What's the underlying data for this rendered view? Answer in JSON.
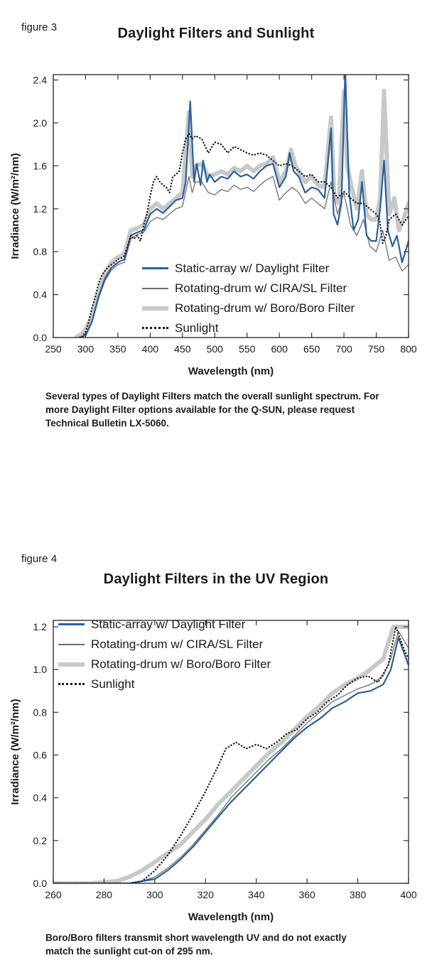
{
  "page": {
    "figure3_label": "figure 3",
    "figure4_label": "figure 4"
  },
  "chart_data": [
    {
      "id": "chart3",
      "type": "line",
      "title": "Daylight Filters and Sunlight",
      "xlabel": "Wavelength (nm)",
      "ylabel": "Irradiance (W/m²/nm)",
      "caption": "Several types of Daylight Filters match the overall sunlight spectrum. For more Daylight Filter options available for the Q-SUN, please request Technical Bulletin LX-5060.",
      "xlim": [
        250,
        800
      ],
      "ylim": [
        0,
        2.45
      ],
      "xticks": [
        250,
        300,
        350,
        400,
        450,
        500,
        550,
        600,
        650,
        700,
        750,
        800
      ],
      "xtick_labels": [
        "250",
        "300",
        "350",
        "400",
        "450",
        "500",
        "550",
        "600",
        "650",
        "700",
        "750",
        "800"
      ],
      "yticks": [
        0,
        0.4,
        0.8,
        1.2,
        1.6,
        2.0,
        2.4
      ],
      "ytick_labels": [
        "0.0",
        "0.4",
        "0.8",
        "1.2",
        "1.6",
        "2.0",
        "2.4"
      ],
      "grid": false,
      "legend_position": "inside-lower-left",
      "series": [
        {
          "name": "Static-array w/ Daylight Filter",
          "color": "#2a5f9c",
          "width": 2.2,
          "dash": "solid",
          "z": 2,
          "x": [
            290,
            300,
            310,
            320,
            330,
            340,
            350,
            360,
            370,
            380,
            390,
            400,
            410,
            420,
            430,
            440,
            450,
            455,
            462,
            468,
            472,
            478,
            482,
            488,
            492,
            500,
            510,
            520,
            530,
            540,
            550,
            560,
            570,
            580,
            590,
            600,
            610,
            616,
            622,
            630,
            640,
            650,
            660,
            670,
            680,
            684,
            690,
            696,
            702,
            708,
            715,
            722,
            728,
            735,
            742,
            750,
            756,
            762,
            768,
            775,
            782,
            790,
            800
          ],
          "y": [
            0,
            0.02,
            0.15,
            0.38,
            0.55,
            0.65,
            0.7,
            0.73,
            0.95,
            0.98,
            1.0,
            1.15,
            1.2,
            1.16,
            1.22,
            1.28,
            1.3,
            1.45,
            2.2,
            1.45,
            1.62,
            1.42,
            1.65,
            1.45,
            1.52,
            1.45,
            1.5,
            1.48,
            1.55,
            1.5,
            1.52,
            1.48,
            1.55,
            1.6,
            1.62,
            1.4,
            1.5,
            1.72,
            1.55,
            1.5,
            1.35,
            1.4,
            1.38,
            1.3,
            1.95,
            1.15,
            1.05,
            1.25,
            2.5,
            1.35,
            1.0,
            1.1,
            1.45,
            0.95,
            0.9,
            0.9,
            1.2,
            1.65,
            1.0,
            0.85,
            0.95,
            0.7,
            0.9
          ]
        },
        {
          "name": "Rotating-drum w/ CIRA/SL Filter",
          "color": "#6e6e6e",
          "width": 1.3,
          "dash": "solid",
          "z": 1,
          "x": [
            290,
            300,
            310,
            320,
            330,
            340,
            350,
            360,
            370,
            380,
            390,
            400,
            410,
            420,
            430,
            440,
            450,
            460,
            465,
            470,
            480,
            490,
            500,
            510,
            520,
            530,
            540,
            550,
            560,
            570,
            580,
            590,
            600,
            610,
            620,
            630,
            640,
            650,
            660,
            670,
            680,
            690,
            700,
            710,
            720,
            730,
            740,
            750,
            760,
            770,
            780,
            790,
            800
          ],
          "y": [
            0,
            0.02,
            0.14,
            0.36,
            0.53,
            0.63,
            0.68,
            0.7,
            0.92,
            0.96,
            0.98,
            1.08,
            1.12,
            1.1,
            1.15,
            1.2,
            1.22,
            1.5,
            1.35,
            1.45,
            1.45,
            1.35,
            1.33,
            1.38,
            1.36,
            1.42,
            1.38,
            1.4,
            1.36,
            1.42,
            1.47,
            1.5,
            1.28,
            1.35,
            1.4,
            1.35,
            1.25,
            1.3,
            1.25,
            1.2,
            1.45,
            1.15,
            1.35,
            1.05,
            0.95,
            1.1,
            0.85,
            0.8,
            1.0,
            0.72,
            0.75,
            0.62,
            0.68
          ]
        },
        {
          "name": "Rotating-drum w/ Boro/Boro Filter",
          "color": "#c6c9c8",
          "width": 6,
          "dash": "solid",
          "z": 0,
          "x": [
            285,
            295,
            300,
            310,
            320,
            330,
            340,
            350,
            360,
            370,
            380,
            390,
            400,
            410,
            420,
            430,
            440,
            450,
            460,
            465,
            470,
            480,
            490,
            500,
            510,
            520,
            530,
            540,
            550,
            560,
            570,
            580,
            590,
            600,
            610,
            618,
            625,
            630,
            640,
            650,
            660,
            670,
            680,
            685,
            692,
            700,
            705,
            712,
            720,
            728,
            735,
            742,
            750,
            756,
            762,
            770,
            778,
            785,
            792,
            800
          ],
          "y": [
            0,
            0.04,
            0.08,
            0.2,
            0.42,
            0.6,
            0.7,
            0.75,
            0.78,
            1.0,
            1.02,
            1.05,
            1.2,
            1.25,
            1.2,
            1.25,
            1.3,
            1.35,
            2.1,
            1.5,
            1.6,
            1.62,
            1.5,
            1.52,
            1.55,
            1.52,
            1.58,
            1.55,
            1.6,
            1.55,
            1.6,
            1.62,
            1.68,
            1.45,
            1.55,
            1.75,
            1.6,
            1.55,
            1.45,
            1.5,
            1.42,
            1.4,
            2.05,
            1.3,
            1.25,
            2.3,
            1.6,
            1.4,
            1.2,
            1.55,
            1.15,
            1.1,
            1.1,
            1.3,
            2.3,
            1.15,
            1.3,
            1.0,
            1.1,
            1.25
          ]
        },
        {
          "name": "Sunlight",
          "color": "#1a1a1a",
          "width": 2.4,
          "dash": "dotted",
          "z": 3,
          "x": [
            290,
            295,
            300,
            305,
            310,
            315,
            320,
            325,
            330,
            335,
            340,
            345,
            350,
            355,
            360,
            365,
            370,
            375,
            380,
            385,
            390,
            395,
            400,
            405,
            410,
            415,
            420,
            425,
            430,
            435,
            440,
            445,
            450,
            455,
            460,
            465,
            470,
            480,
            490,
            500,
            510,
            520,
            530,
            540,
            550,
            560,
            570,
            580,
            590,
            600,
            610,
            620,
            630,
            640,
            650,
            660,
            670,
            680,
            690,
            700,
            710,
            720,
            730,
            740,
            750,
            755,
            760,
            765,
            770,
            780,
            790,
            800
          ],
          "y": [
            0,
            0.01,
            0.05,
            0.15,
            0.28,
            0.38,
            0.5,
            0.58,
            0.62,
            0.66,
            0.68,
            0.7,
            0.73,
            0.74,
            0.76,
            0.85,
            0.95,
            0.92,
            0.95,
            0.9,
            1.05,
            1.15,
            1.32,
            1.45,
            1.5,
            1.45,
            1.42,
            1.4,
            1.35,
            1.5,
            1.52,
            1.55,
            1.72,
            1.85,
            1.9,
            1.85,
            1.88,
            1.85,
            1.72,
            1.82,
            1.8,
            1.72,
            1.78,
            1.75,
            1.72,
            1.7,
            1.72,
            1.7,
            1.65,
            1.6,
            1.62,
            1.6,
            1.55,
            1.5,
            1.52,
            1.45,
            1.45,
            1.4,
            1.3,
            1.36,
            1.3,
            1.25,
            1.25,
            1.2,
            1.15,
            1.1,
            0.88,
            0.95,
            1.1,
            1.15,
            1.05,
            1.13
          ]
        }
      ]
    },
    {
      "id": "chart4",
      "type": "line",
      "title": "Daylight Filters in the UV Region",
      "xlabel": "Wavelength (nm)",
      "ylabel": "Irradiance (W/m²/nm)",
      "caption": "Boro/Boro filters transmit short wavelength UV and do not exactly match the sunlight cut-on of 295 nm.",
      "xlim": [
        260,
        400
      ],
      "ylim": [
        0,
        1.23
      ],
      "xticks": [
        260,
        280,
        300,
        320,
        340,
        360,
        380,
        400
      ],
      "xtick_labels": [
        "260",
        "280",
        "300",
        "320",
        "340",
        "360",
        "380",
        "400"
      ],
      "yticks": [
        0,
        0.2,
        0.4,
        0.6,
        0.8,
        1.0,
        1.2
      ],
      "ytick_labels": [
        "0.0",
        "0.2",
        "0.4",
        "0.6",
        "0.8",
        "1.0",
        "1.2"
      ],
      "grid": false,
      "legend_position": "inside-upper-left",
      "series": [
        {
          "name": "Static-array w/ Daylight Filter",
          "color": "#2a5f9c",
          "width": 2.2,
          "dash": "solid",
          "z": 2,
          "x": [
            260,
            280,
            290,
            295,
            300,
            305,
            310,
            315,
            320,
            325,
            330,
            335,
            340,
            345,
            350,
            355,
            360,
            365,
            370,
            375,
            380,
            385,
            390,
            393,
            396,
            400
          ],
          "y": [
            0,
            0,
            0,
            0.01,
            0.02,
            0.06,
            0.11,
            0.17,
            0.24,
            0.31,
            0.38,
            0.44,
            0.5,
            0.56,
            0.62,
            0.68,
            0.73,
            0.77,
            0.82,
            0.85,
            0.89,
            0.9,
            0.93,
            1.0,
            1.15,
            1.02
          ]
        },
        {
          "name": "Rotating-drum w/ CIRA/SL Filter",
          "color": "#6e6e6e",
          "width": 1.3,
          "dash": "solid",
          "z": 1,
          "x": [
            260,
            280,
            290,
            295,
            300,
            305,
            310,
            315,
            320,
            325,
            330,
            335,
            340,
            345,
            350,
            355,
            360,
            365,
            370,
            375,
            380,
            385,
            390,
            393,
            396,
            400
          ],
          "y": [
            0,
            0,
            0,
            0.01,
            0.03,
            0.07,
            0.12,
            0.18,
            0.25,
            0.32,
            0.4,
            0.46,
            0.52,
            0.58,
            0.63,
            0.69,
            0.75,
            0.8,
            0.85,
            0.88,
            0.91,
            0.93,
            0.97,
            1.05,
            1.18,
            1.1
          ]
        },
        {
          "name": "Rotating-drum w/ Boro/Boro Filter",
          "color": "#c6c9c8",
          "width": 6,
          "dash": "solid",
          "z": 0,
          "x": [
            260,
            275,
            285,
            290,
            295,
            300,
            305,
            310,
            315,
            320,
            325,
            330,
            335,
            340,
            345,
            350,
            355,
            360,
            365,
            370,
            375,
            380,
            385,
            390,
            394,
            400
          ],
          "y": [
            0,
            0,
            0.01,
            0.03,
            0.06,
            0.1,
            0.14,
            0.18,
            0.24,
            0.3,
            0.37,
            0.43,
            0.49,
            0.55,
            0.61,
            0.66,
            0.72,
            0.78,
            0.83,
            0.89,
            0.93,
            0.96,
            1.0,
            1.05,
            1.2,
            1.2
          ]
        },
        {
          "name": "Sunlight",
          "color": "#1a1a1a",
          "width": 2.4,
          "dash": "dotted",
          "z": 3,
          "x": [
            260,
            280,
            290,
            295,
            300,
            305,
            310,
            315,
            320,
            325,
            328,
            332,
            336,
            340,
            344,
            348,
            352,
            356,
            360,
            364,
            368,
            372,
            376,
            380,
            384,
            388,
            392,
            395,
            398,
            400
          ],
          "y": [
            0,
            0,
            0,
            0.01,
            0.06,
            0.13,
            0.22,
            0.32,
            0.43,
            0.55,
            0.63,
            0.66,
            0.63,
            0.65,
            0.63,
            0.66,
            0.7,
            0.72,
            0.77,
            0.8,
            0.85,
            0.88,
            0.93,
            0.96,
            0.97,
            0.94,
            1.02,
            1.2,
            1.1,
            1.05
          ]
        }
      ]
    }
  ]
}
